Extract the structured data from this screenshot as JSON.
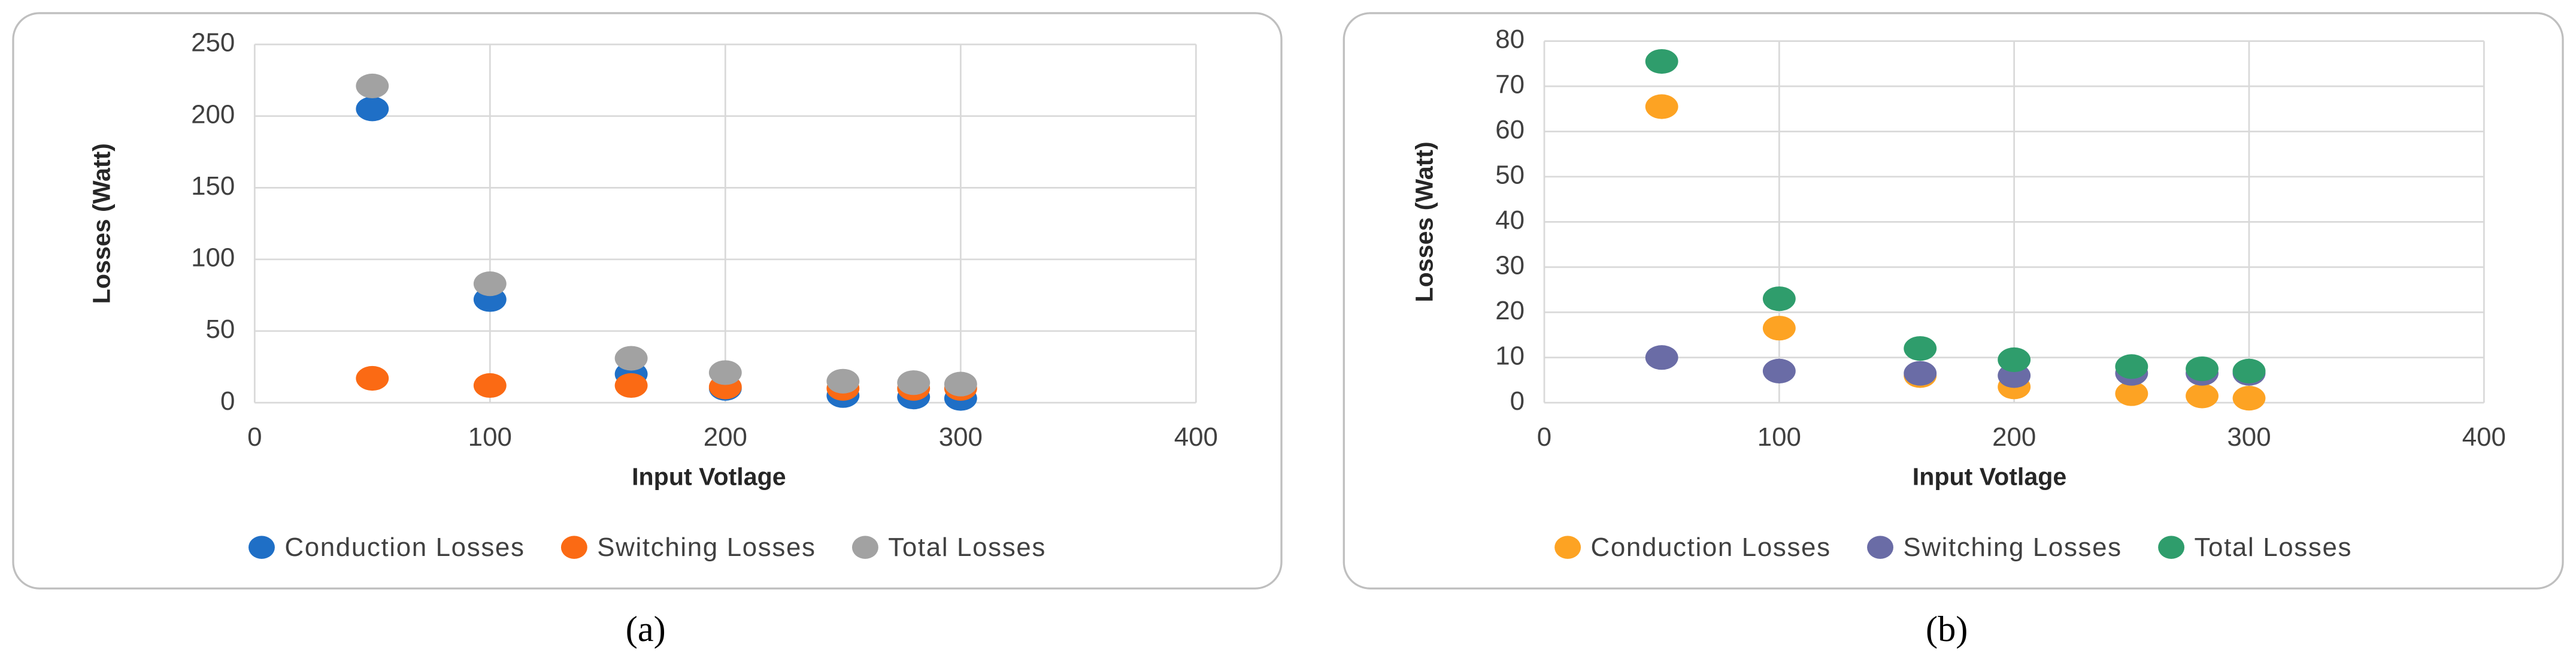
{
  "chart_data": [
    {
      "type": "scatter",
      "caption": "(a)",
      "xlabel": "Input Votlage",
      "ylabel": "Losses (Watt)",
      "x": [
        50,
        100,
        160,
        200,
        250,
        280,
        300
      ],
      "series": [
        {
          "name": "Conduction Losses",
          "color": "#1f6fc6",
          "values": [
            205,
            72,
            20,
            10,
            5,
            4,
            3
          ]
        },
        {
          "name": "Switching Losses",
          "color": "#fb6a14",
          "values": [
            17,
            12,
            12,
            11,
            10,
            10,
            10
          ]
        },
        {
          "name": "Total Losses",
          "color": "#a2a2a2",
          "values": [
            221,
            83,
            31,
            21,
            15,
            14,
            13
          ]
        }
      ],
      "xlim": [
        0,
        400
      ],
      "xticks": [
        0,
        100,
        200,
        300,
        400
      ],
      "ylim": [
        0,
        250
      ],
      "yticks": [
        0,
        50,
        100,
        150,
        200,
        250
      ],
      "grid": true,
      "legend": "bottom"
    },
    {
      "type": "scatter",
      "caption": "(b)",
      "xlabel": "Input Votlage",
      "ylabel": "Losses (Watt)",
      "x": [
        50,
        100,
        160,
        200,
        250,
        280,
        300
      ],
      "series": [
        {
          "name": "Conduction Losses",
          "color": "#fda323",
          "values": [
            65.5,
            16.5,
            6,
            3.5,
            2,
            1.5,
            1
          ]
        },
        {
          "name": "Switching Losses",
          "color": "#6a6ca6",
          "values": [
            10,
            7,
            6.5,
            6,
            6.5,
            6.5,
            6.5
          ]
        },
        {
          "name": "Total Losses",
          "color": "#2f9d6c",
          "values": [
            75.5,
            23,
            12,
            9.5,
            8,
            7.5,
            7
          ]
        }
      ],
      "xlim": [
        0,
        400
      ],
      "xticks": [
        0,
        100,
        200,
        300,
        400
      ],
      "ylim": [
        0,
        80
      ],
      "yticks": [
        0,
        10,
        20,
        30,
        40,
        50,
        60,
        70,
        80
      ],
      "grid": true,
      "legend": "bottom"
    }
  ]
}
